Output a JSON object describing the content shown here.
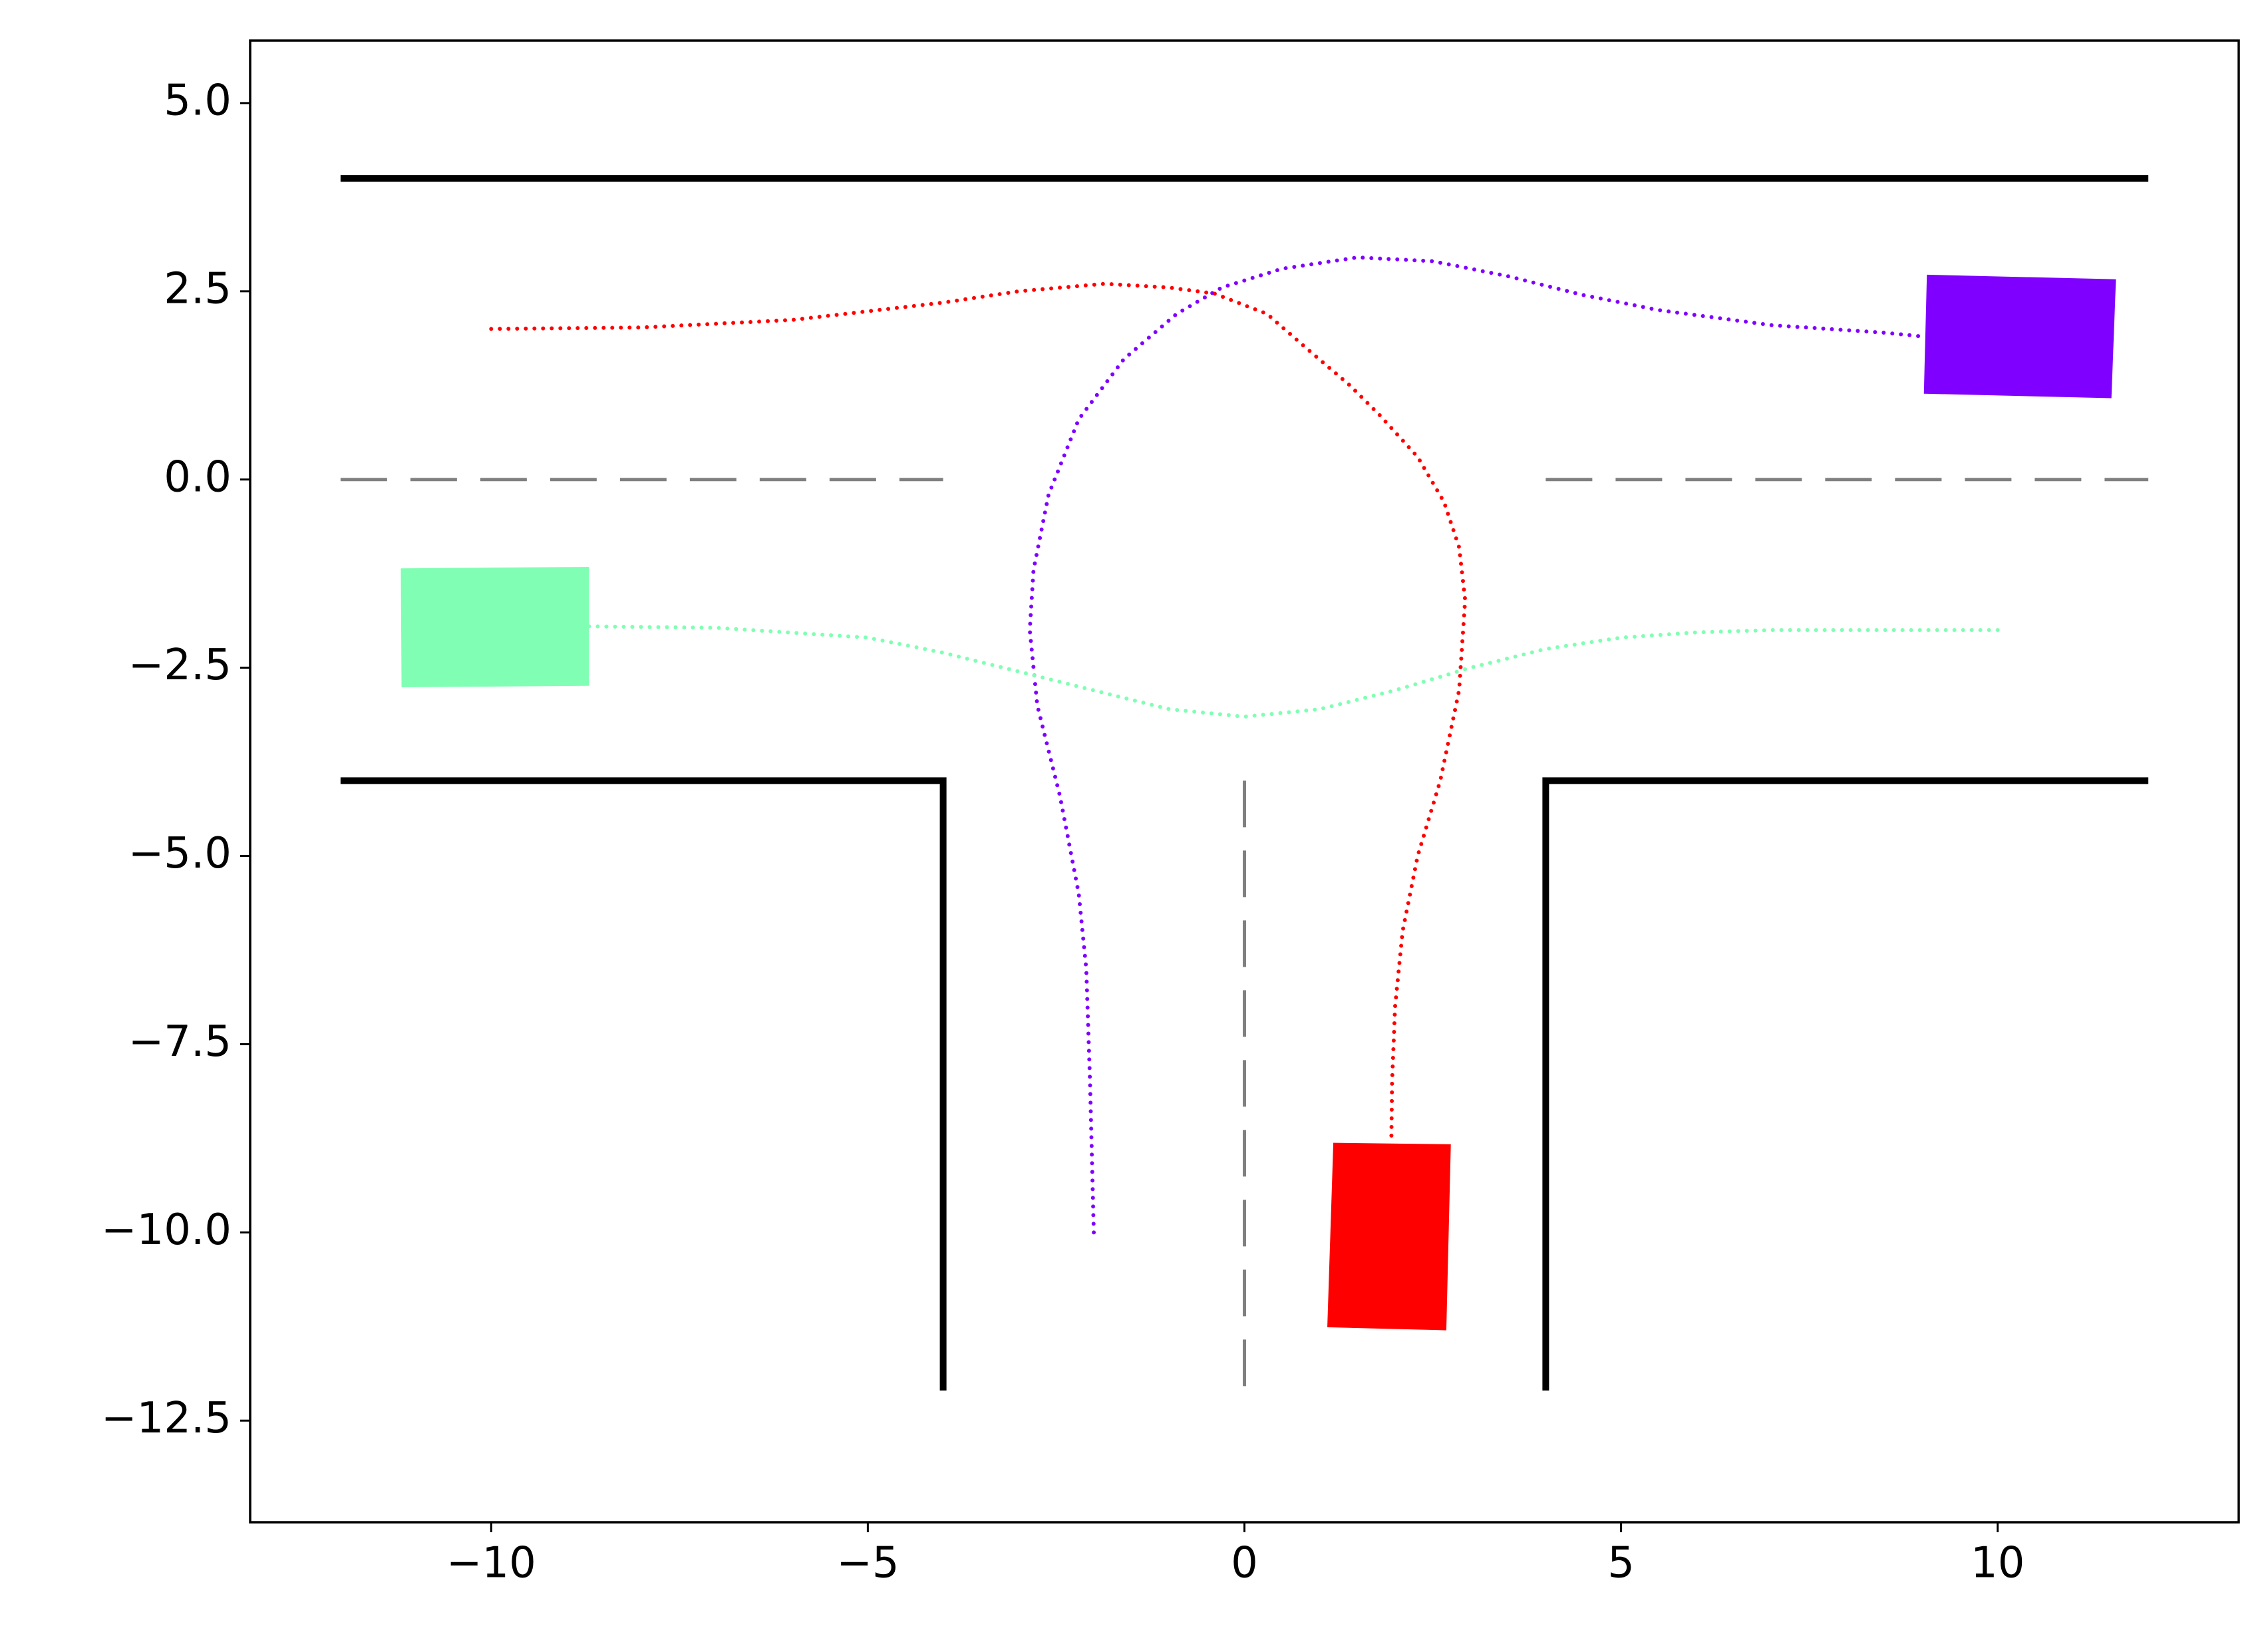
{
  "chart_data": {
    "type": "line",
    "xlim": [
      -13.2,
      13.2
    ],
    "ylim": [
      -13.85,
      5.83
    ],
    "xticks": [
      {
        "value": -10,
        "label": "−10"
      },
      {
        "value": -5,
        "label": "−5"
      },
      0,
      5,
      10
    ],
    "yticks": [
      {
        "value": 5,
        "label": "5.0"
      },
      {
        "value": 2.5,
        "label": "2.5"
      },
      {
        "value": 0,
        "label": "0.0"
      },
      {
        "value": -2.5,
        "label": "−2.5"
      },
      {
        "value": -5,
        "label": "−5.0"
      },
      {
        "value": -7.5,
        "label": "−7.5"
      },
      {
        "value": -10,
        "label": "−10.0"
      },
      {
        "value": -12.5,
        "label": "−12.5"
      }
    ],
    "series": [
      {
        "color": "#000000",
        "style": "solid",
        "x": [
          -12,
          12
        ],
        "values": [
          4,
          4
        ]
      },
      {
        "color": "#000000",
        "style": "solid",
        "x": [
          -12,
          -4,
          -4
        ],
        "values": [
          -4,
          -4,
          -12.1
        ]
      },
      {
        "color": "#000000",
        "style": "solid",
        "x": [
          12,
          4,
          4
        ],
        "values": [
          -4,
          -4,
          -12.1
        ]
      },
      {
        "color": "#808080",
        "style": "dashed",
        "x": [
          -12,
          -4
        ],
        "values": [
          0,
          0
        ]
      },
      {
        "color": "#808080",
        "style": "dashed",
        "x": [
          4,
          12
        ],
        "values": [
          0,
          0
        ]
      },
      {
        "color": "#808080",
        "style": "dashed",
        "x": [
          0,
          0
        ],
        "values": [
          -4,
          -12.1
        ]
      },
      {
        "color": "#ff0000",
        "style": "dotted",
        "x": [
          -10,
          -8,
          -6,
          -4,
          -3,
          -1.85,
          -1,
          -0.4,
          0.3,
          0.85,
          1.4,
          1.8,
          2.3,
          2.65,
          2.85,
          2.93,
          2.85,
          2.6,
          2.3,
          2.1,
          2,
          1.96,
          1.95
        ],
        "values": [
          2,
          2.02,
          2.12,
          2.35,
          2.5,
          2.6,
          2.55,
          2.47,
          2.2,
          1.72,
          1.25,
          0.85,
          0.3,
          -0.3,
          -0.9,
          -1.6,
          -2.8,
          -4,
          -5,
          -6,
          -7,
          -8,
          -8.8
        ]
      },
      {
        "color": "#8000ff",
        "style": "dotted",
        "x": [
          -2,
          -2.05,
          -2.1,
          -2.2,
          -2.45,
          -2.75,
          -2.85,
          -2.8,
          -2.6,
          -2.2,
          -1.6,
          -0.9,
          -0.3,
          0.5,
          1.5,
          2.5,
          3.5,
          4.5,
          5.5,
          7,
          8.5,
          9
        ],
        "values": [
          -10,
          -8,
          -6.5,
          -5.5,
          -4.2,
          -3,
          -2,
          -1.2,
          -0.2,
          0.8,
          1.6,
          2.2,
          2.55,
          2.8,
          2.95,
          2.9,
          2.7,
          2.45,
          2.25,
          2.05,
          1.95,
          1.9
        ]
      },
      {
        "color": "#80ffb4",
        "style": "dotted",
        "x": [
          -8.7,
          -7,
          -5,
          -4,
          -3,
          -2,
          -1,
          0,
          1,
          2,
          3,
          4,
          5,
          6,
          7,
          8,
          10
        ],
        "values": [
          -1.95,
          -1.97,
          -2.1,
          -2.3,
          -2.55,
          -2.8,
          -3.05,
          -3.15,
          -3.05,
          -2.8,
          -2.5,
          -2.25,
          -2.1,
          -2.03,
          -2,
          -2,
          -2
        ]
      },
      {
        "color": "#ff0000",
        "style": "polygon",
        "x": [
          1.18,
          2.74,
          2.68,
          1.1
        ],
        "values": [
          -8.81,
          -8.83,
          -11.3,
          -11.26
        ]
      },
      {
        "color": "#8000ff",
        "style": "polygon",
        "x": [
          9.06,
          11.57,
          11.51,
          9.02
        ],
        "values": [
          2.72,
          2.66,
          1.08,
          1.14
        ]
      },
      {
        "color": "#80ffb4",
        "style": "polygon",
        "x": [
          -11.2,
          -8.7,
          -8.7,
          -11.19
        ],
        "values": [
          -1.18,
          -1.16,
          -2.74,
          -2.76
        ]
      }
    ]
  }
}
